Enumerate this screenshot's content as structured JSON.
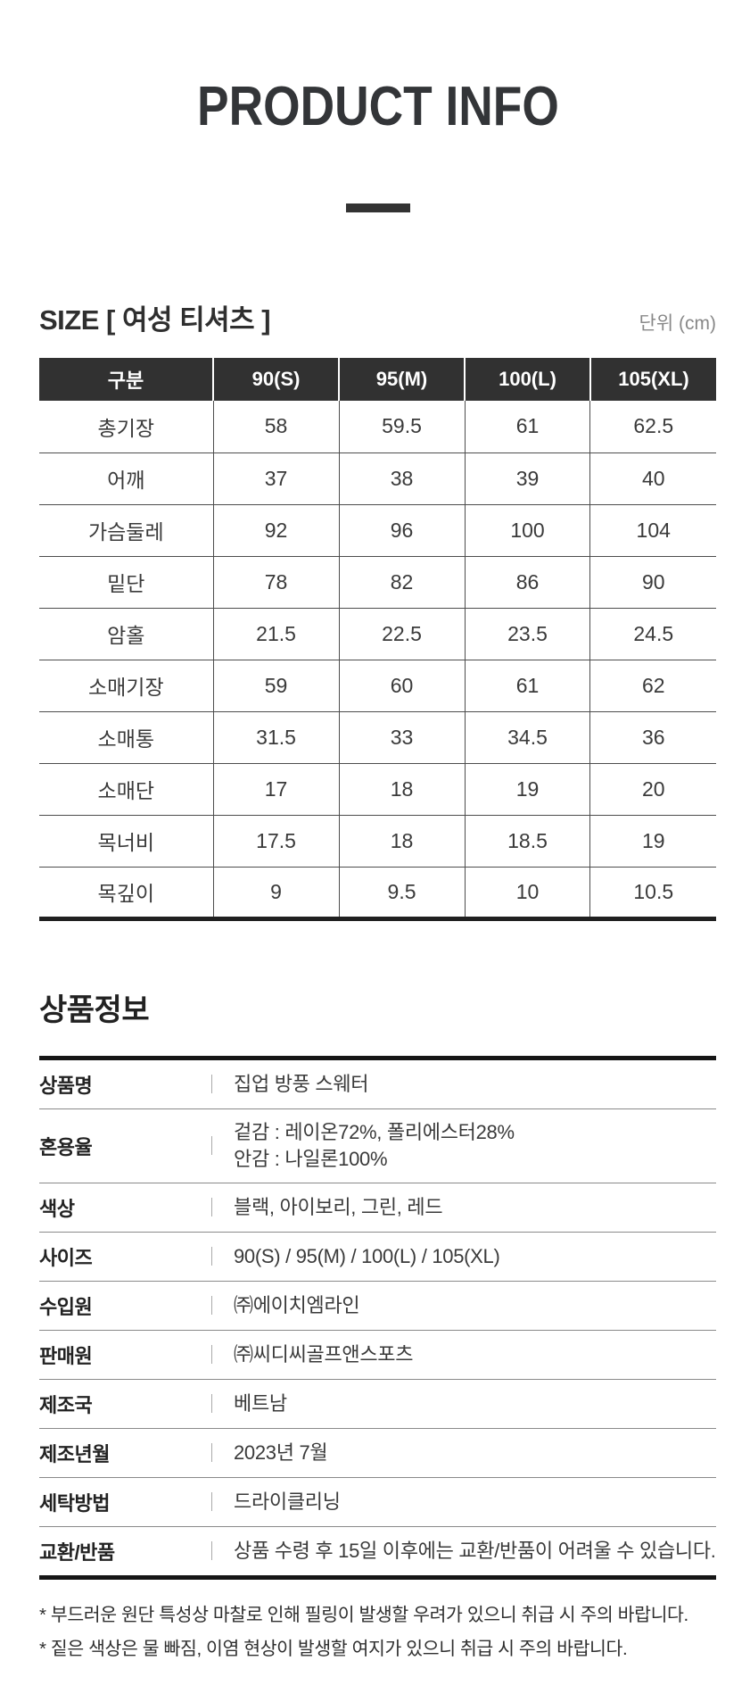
{
  "title": "PRODUCT INFO",
  "size_section": {
    "heading": "SIZE [ 여성 티셔츠 ]",
    "unit_label": "단위 (cm)",
    "table": {
      "columns": [
        "구분",
        "90(S)",
        "95(M)",
        "100(L)",
        "105(XL)"
      ],
      "rows": [
        {
          "label": "총기장",
          "values": [
            "58",
            "59.5",
            "61",
            "62.5"
          ]
        },
        {
          "label": "어깨",
          "values": [
            "37",
            "38",
            "39",
            "40"
          ]
        },
        {
          "label": "가슴둘레",
          "values": [
            "92",
            "96",
            "100",
            "104"
          ]
        },
        {
          "label": "밑단",
          "values": [
            "78",
            "82",
            "86",
            "90"
          ]
        },
        {
          "label": "암홀",
          "values": [
            "21.5",
            "22.5",
            "23.5",
            "24.5"
          ]
        },
        {
          "label": "소매기장",
          "values": [
            "59",
            "60",
            "61",
            "62"
          ]
        },
        {
          "label": "소매통",
          "values": [
            "31.5",
            "33",
            "34.5",
            "36"
          ]
        },
        {
          "label": "소매단",
          "values": [
            "17",
            "18",
            "19",
            "20"
          ]
        },
        {
          "label": "목너비",
          "values": [
            "17.5",
            "18",
            "18.5",
            "19"
          ]
        },
        {
          "label": "목깊이",
          "values": [
            "9",
            "9.5",
            "10",
            "10.5"
          ]
        }
      ]
    }
  },
  "info_section": {
    "heading": "상품정보",
    "rows": [
      {
        "label": "상품명",
        "value_lines": [
          "집업 방풍 스웨터"
        ]
      },
      {
        "label": "혼용율",
        "value_lines": [
          "겉감 : 레이온72%, 폴리에스터28%",
          "안감 : 나일론100%"
        ]
      },
      {
        "label": "색상",
        "value_lines": [
          "블랙, 아이보리, 그린, 레드"
        ]
      },
      {
        "label": "사이즈",
        "value_lines": [
          "90(S) / 95(M) / 100(L) / 105(XL)"
        ]
      },
      {
        "label": "수입원",
        "value_lines": [
          "㈜에이치엠라인"
        ]
      },
      {
        "label": "판매원",
        "value_lines": [
          "㈜씨디씨골프앤스포츠"
        ]
      },
      {
        "label": "제조국",
        "value_lines": [
          "베트남"
        ]
      },
      {
        "label": "제조년월",
        "value_lines": [
          "2023년 7월"
        ]
      },
      {
        "label": "세탁방법",
        "value_lines": [
          "드라이클리닝"
        ]
      },
      {
        "label": "교환/반품",
        "value_lines": [
          "상품 수령 후 15일 이후에는 교환/반품이 어려울 수 있습니다."
        ]
      }
    ]
  },
  "footnotes": [
    "* 부드러운 원단 특성상 마찰로 인해 필링이 발생할 우려가 있으니 취급 시 주의 바랍니다.",
    "* 짙은 색상은 물 빠짐, 이염 현상이 발생할 여지가 있으니 취급 시 주의 바랍니다."
  ],
  "colors": {
    "table_header_bg": "#313131",
    "table_border": "#4d4d4d",
    "thick_rule": "#161616",
    "info_row_rule": "#8a8a8a",
    "muted_text": "#888888",
    "title_text": "#333538"
  }
}
